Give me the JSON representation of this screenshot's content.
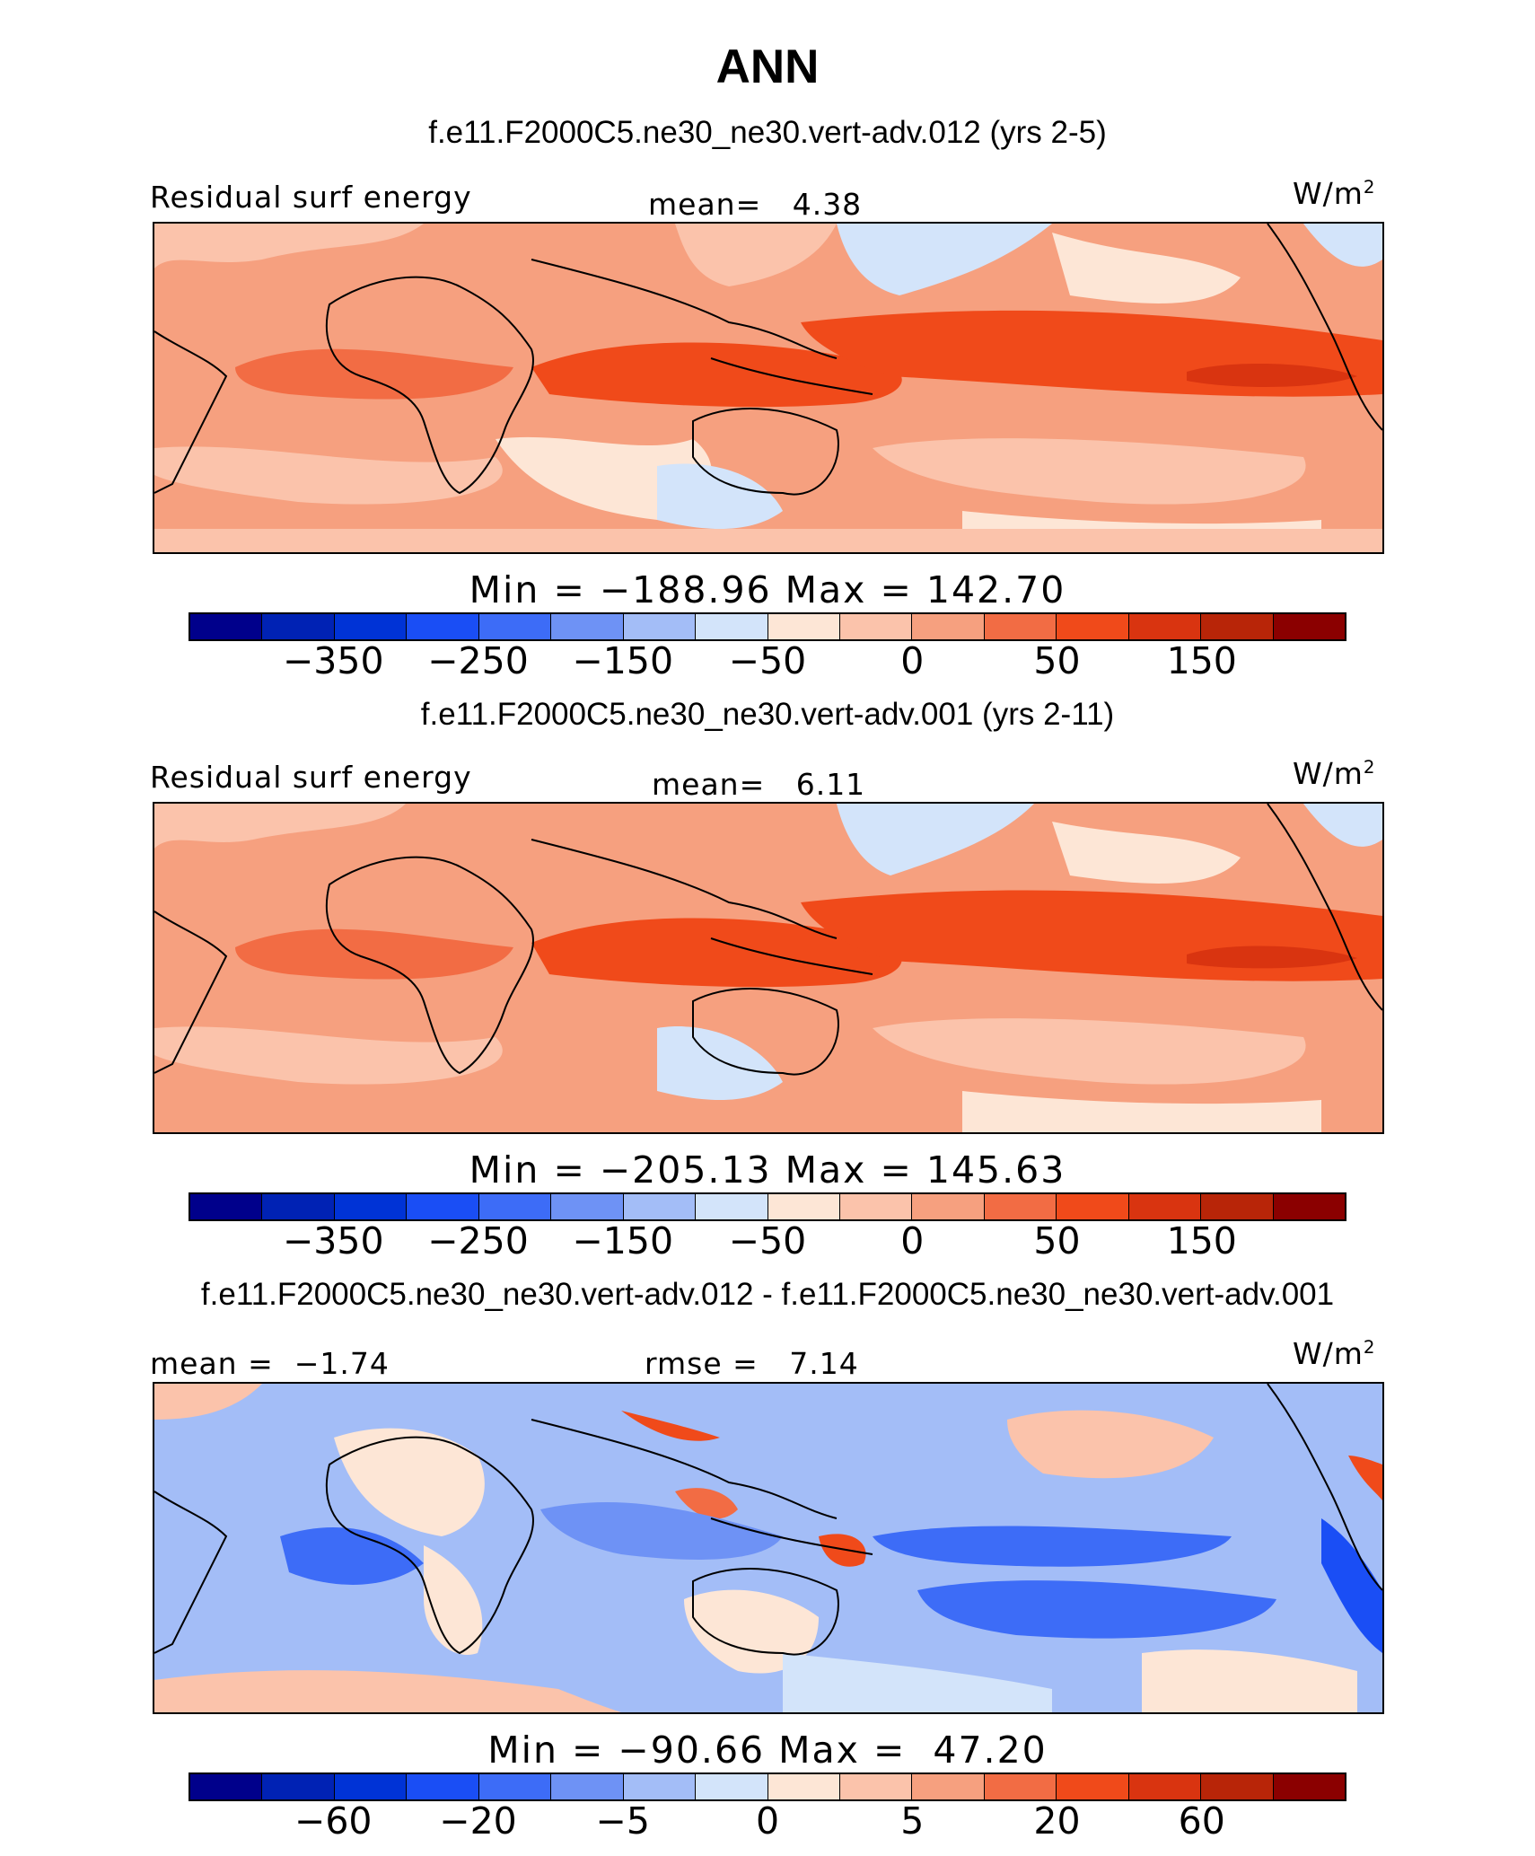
{
  "title": "ANN",
  "colors": {
    "scale": [
      "#00008b",
      "#0022b4",
      "#0033d6",
      "#1a4ef5",
      "#3d6cf7",
      "#6e92f5",
      "#a3bdf7",
      "#d3e4fa",
      "#fde6d6",
      "#fbc3ab",
      "#f6a07f",
      "#f26c44",
      "#f04a1a",
      "#d93410",
      "#b82508",
      "#8b0000"
    ],
    "land_base": "#f6a07f",
    "diff_base": "#a3bdf7"
  },
  "panels": [
    {
      "case_title": "f.e11.F2000C5.ne30_ne30.vert-adv.012 (yrs 2-5)",
      "left_label": "Residual surf energy",
      "center_label": "mean=   4.38",
      "units": "W/m",
      "units_sup": "2",
      "min_max": "Min = −188.96 Max = 142.70",
      "colorbar_ticks": [
        "−350",
        "−250",
        "−150",
        "−50",
        "0",
        "50",
        "150"
      ]
    },
    {
      "case_title": "f.e11.F2000C5.ne30_ne30.vert-adv.001 (yrs 2-11)",
      "left_label": "Residual surf energy",
      "center_label": "mean=   6.11",
      "units": "W/m",
      "units_sup": "2",
      "min_max": "Min = −205.13 Max = 145.63",
      "colorbar_ticks": [
        "−350",
        "−250",
        "−150",
        "−50",
        "0",
        "50",
        "150"
      ]
    },
    {
      "case_title": "f.e11.F2000C5.ne30_ne30.vert-adv.012 - f.e11.F2000C5.ne30_ne30.vert-adv.001",
      "left_label": "mean =  −1.74",
      "center_label": "rmse =   7.14",
      "units": "W/m",
      "units_sup": "2",
      "min_max": "Min = −90.66 Max =  47.20",
      "colorbar_ticks": [
        "−60",
        "−20",
        "−5",
        "0",
        "5",
        "20",
        "60"
      ]
    }
  ]
}
